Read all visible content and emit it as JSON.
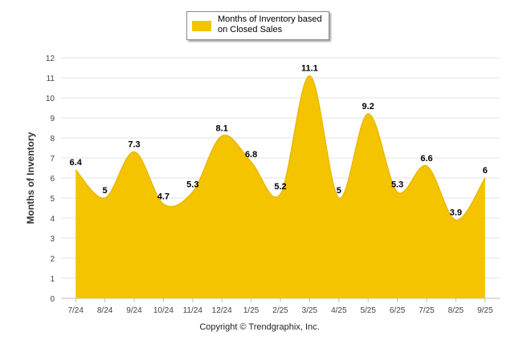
{
  "chart_data": {
    "type": "area",
    "categories": [
      "7/24",
      "8/24",
      "9/24",
      "10/24",
      "11/24",
      "12/24",
      "1/25",
      "2/25",
      "3/25",
      "4/25",
      "5/25",
      "6/25",
      "7/25",
      "8/25",
      "9/25"
    ],
    "series": [
      {
        "name": "Months of Inventory based on Closed Sales",
        "values": [
          6.4,
          5,
          7.3,
          4.7,
          5.3,
          8.1,
          6.8,
          5.2,
          11.1,
          5,
          9.2,
          5.3,
          6.6,
          3.9,
          6
        ]
      }
    ],
    "ylabel": "Months of Inventory",
    "xlabel": "",
    "ylim": [
      0,
      12
    ],
    "yticks": [
      0,
      1,
      2,
      3,
      4,
      5,
      6,
      7,
      8,
      9,
      10,
      11,
      12
    ],
    "grid": true,
    "legend_position": "top-center",
    "data_labels": true,
    "fill_color": "#f5c400"
  },
  "legend": {
    "label": "Months of Inventory based on Closed Sales"
  },
  "footer": {
    "copyright": "Copyright © Trendgraphix, Inc."
  }
}
